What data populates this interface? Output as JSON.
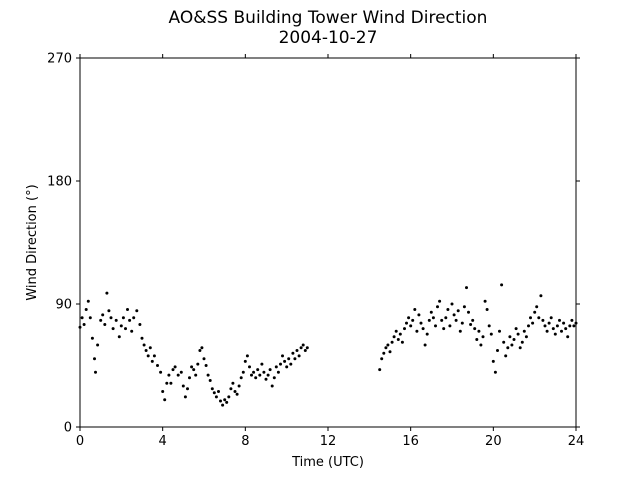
{
  "chart_data": {
    "type": "scatter",
    "title": "AO&SS Building Tower Wind Direction",
    "subtitle": "2004-10-27",
    "xlabel": "Time (UTC)",
    "ylabel": "Wind Direction (°)",
    "xlim": [
      0,
      24
    ],
    "ylim": [
      0,
      270
    ],
    "xticks": [
      0,
      4,
      8,
      12,
      16,
      20,
      24
    ],
    "yticks": [
      0,
      90,
      180,
      270
    ],
    "grid": false,
    "legend": "none",
    "marker_color": "#000000",
    "series": [
      {
        "points": [
          [
            0.0,
            73
          ],
          [
            0.1,
            80
          ],
          [
            0.2,
            75
          ],
          [
            0.3,
            86
          ],
          [
            0.4,
            92
          ],
          [
            0.5,
            80
          ],
          [
            0.6,
            65
          ],
          [
            0.7,
            50
          ],
          [
            0.75,
            40
          ],
          [
            0.85,
            60
          ],
          [
            1.0,
            78
          ],
          [
            1.1,
            82
          ],
          [
            1.2,
            75
          ],
          [
            1.3,
            98
          ],
          [
            1.4,
            85
          ],
          [
            1.5,
            80
          ],
          [
            1.6,
            72
          ],
          [
            1.75,
            78
          ],
          [
            1.9,
            66
          ],
          [
            2.0,
            74
          ],
          [
            2.1,
            80
          ],
          [
            2.2,
            72
          ],
          [
            2.3,
            86
          ],
          [
            2.4,
            78
          ],
          [
            2.5,
            70
          ],
          [
            2.6,
            80
          ],
          [
            2.75,
            85
          ],
          [
            2.9,
            75
          ],
          [
            3.0,
            65
          ],
          [
            3.1,
            60
          ],
          [
            3.2,
            56
          ],
          [
            3.3,
            52
          ],
          [
            3.4,
            58
          ],
          [
            3.5,
            48
          ],
          [
            3.6,
            52
          ],
          [
            3.75,
            45
          ],
          [
            3.9,
            40
          ],
          [
            4.0,
            26
          ],
          [
            4.1,
            20
          ],
          [
            4.2,
            32
          ],
          [
            4.3,
            38
          ],
          [
            4.4,
            32
          ],
          [
            4.5,
            42
          ],
          [
            4.6,
            44
          ],
          [
            4.75,
            38
          ],
          [
            4.9,
            40
          ],
          [
            5.0,
            30
          ],
          [
            5.1,
            22
          ],
          [
            5.2,
            28
          ],
          [
            5.3,
            36
          ],
          [
            5.4,
            44
          ],
          [
            5.5,
            42
          ],
          [
            5.6,
            38
          ],
          [
            5.7,
            46
          ],
          [
            5.8,
            56
          ],
          [
            5.9,
            58
          ],
          [
            6.0,
            50
          ],
          [
            6.1,
            45
          ],
          [
            6.2,
            38
          ],
          [
            6.3,
            34
          ],
          [
            6.4,
            28
          ],
          [
            6.5,
            25
          ],
          [
            6.6,
            22
          ],
          [
            6.7,
            26
          ],
          [
            6.8,
            19
          ],
          [
            6.9,
            16
          ],
          [
            7.0,
            20
          ],
          [
            7.1,
            18
          ],
          [
            7.2,
            22
          ],
          [
            7.3,
            28
          ],
          [
            7.4,
            32
          ],
          [
            7.5,
            26
          ],
          [
            7.6,
            24
          ],
          [
            7.7,
            30
          ],
          [
            7.8,
            36
          ],
          [
            7.9,
            40
          ],
          [
            8.0,
            48
          ],
          [
            8.1,
            52
          ],
          [
            8.2,
            44
          ],
          [
            8.3,
            38
          ],
          [
            8.4,
            40
          ],
          [
            8.5,
            36
          ],
          [
            8.6,
            42
          ],
          [
            8.7,
            38
          ],
          [
            8.8,
            46
          ],
          [
            8.9,
            40
          ],
          [
            9.0,
            35
          ],
          [
            9.1,
            38
          ],
          [
            9.2,
            42
          ],
          [
            9.3,
            30
          ],
          [
            9.4,
            36
          ],
          [
            9.5,
            44
          ],
          [
            9.6,
            40
          ],
          [
            9.7,
            46
          ],
          [
            9.8,
            52
          ],
          [
            9.9,
            48
          ],
          [
            10.0,
            44
          ],
          [
            10.1,
            50
          ],
          [
            10.2,
            46
          ],
          [
            10.3,
            54
          ],
          [
            10.4,
            50
          ],
          [
            10.5,
            56
          ],
          [
            10.6,
            52
          ],
          [
            10.7,
            58
          ],
          [
            10.8,
            60
          ],
          [
            10.9,
            56
          ],
          [
            11.0,
            58
          ],
          [
            14.5,
            42
          ],
          [
            14.6,
            50
          ],
          [
            14.7,
            54
          ],
          [
            14.8,
            58
          ],
          [
            14.9,
            60
          ],
          [
            15.0,
            55
          ],
          [
            15.1,
            62
          ],
          [
            15.2,
            66
          ],
          [
            15.3,
            70
          ],
          [
            15.4,
            64
          ],
          [
            15.5,
            68
          ],
          [
            15.6,
            62
          ],
          [
            15.7,
            72
          ],
          [
            15.8,
            76
          ],
          [
            15.9,
            80
          ],
          [
            16.0,
            74
          ],
          [
            16.1,
            78
          ],
          [
            16.2,
            86
          ],
          [
            16.3,
            70
          ],
          [
            16.4,
            82
          ],
          [
            16.5,
            76
          ],
          [
            16.6,
            72
          ],
          [
            16.7,
            60
          ],
          [
            16.8,
            68
          ],
          [
            16.9,
            78
          ],
          [
            17.0,
            84
          ],
          [
            17.1,
            80
          ],
          [
            17.2,
            74
          ],
          [
            17.3,
            88
          ],
          [
            17.4,
            92
          ],
          [
            17.5,
            78
          ],
          [
            17.6,
            72
          ],
          [
            17.7,
            80
          ],
          [
            17.8,
            86
          ],
          [
            17.9,
            74
          ],
          [
            18.0,
            90
          ],
          [
            18.1,
            82
          ],
          [
            18.2,
            78
          ],
          [
            18.3,
            85
          ],
          [
            18.4,
            70
          ],
          [
            18.5,
            76
          ],
          [
            18.6,
            88
          ],
          [
            18.7,
            102
          ],
          [
            18.8,
            84
          ],
          [
            18.9,
            75
          ],
          [
            19.0,
            78
          ],
          [
            19.1,
            72
          ],
          [
            19.2,
            64
          ],
          [
            19.3,
            70
          ],
          [
            19.4,
            60
          ],
          [
            19.5,
            66
          ],
          [
            19.6,
            92
          ],
          [
            19.7,
            86
          ],
          [
            19.8,
            74
          ],
          [
            19.9,
            68
          ],
          [
            20.0,
            48
          ],
          [
            20.1,
            40
          ],
          [
            20.2,
            56
          ],
          [
            20.3,
            70
          ],
          [
            20.4,
            104
          ],
          [
            20.5,
            62
          ],
          [
            20.6,
            52
          ],
          [
            20.7,
            58
          ],
          [
            20.8,
            66
          ],
          [
            20.9,
            60
          ],
          [
            21.0,
            64
          ],
          [
            21.1,
            72
          ],
          [
            21.2,
            68
          ],
          [
            21.3,
            58
          ],
          [
            21.4,
            62
          ],
          [
            21.5,
            70
          ],
          [
            21.6,
            66
          ],
          [
            21.7,
            74
          ],
          [
            21.8,
            80
          ],
          [
            21.9,
            76
          ],
          [
            22.0,
            84
          ],
          [
            22.1,
            88
          ],
          [
            22.2,
            80
          ],
          [
            22.3,
            96
          ],
          [
            22.4,
            78
          ],
          [
            22.5,
            74
          ],
          [
            22.6,
            70
          ],
          [
            22.7,
            76
          ],
          [
            22.8,
            80
          ],
          [
            22.9,
            72
          ],
          [
            23.0,
            68
          ],
          [
            23.1,
            74
          ],
          [
            23.2,
            78
          ],
          [
            23.3,
            70
          ],
          [
            23.4,
            76
          ],
          [
            23.5,
            72
          ],
          [
            23.6,
            66
          ],
          [
            23.7,
            74
          ],
          [
            23.8,
            78
          ],
          [
            23.9,
            74
          ],
          [
            24.0,
            76
          ]
        ]
      }
    ]
  }
}
